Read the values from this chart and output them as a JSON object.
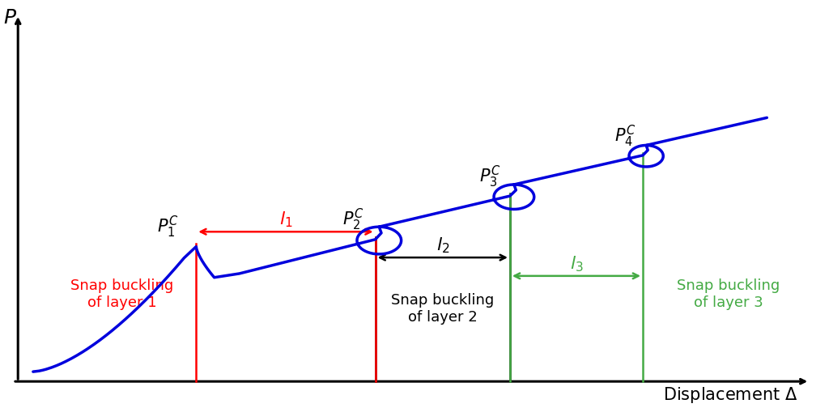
{
  "background_color": "#ffffff",
  "curve_color": "#0000dd",
  "curve_lw": 2.5,
  "axis_color": "black",
  "axis_lw": 2.0,
  "vline_colors": [
    "red",
    "red",
    "black",
    "black",
    "green",
    "green"
  ],
  "vline_lw": 1.5,
  "arrow_color_l1": "red",
  "arrow_color_l2": "black",
  "arrow_color_l3": "#44aa44",
  "snap_label_colors": [
    "red",
    "black",
    "#44aa44"
  ],
  "snap_label_texts": [
    "Snap buckling\nof layer 1",
    "Snap buckling\nof layer 2",
    "Snap buckling\nof layer 3"
  ],
  "peak_label_texts": [
    "$P_1^C$",
    "$P_2^C$",
    "$P_3^C$",
    "$P_4^C$"
  ],
  "l_label_texts": [
    "$l_1$",
    "$l_2$",
    "$l_3$"
  ],
  "xlabel": "Displacement $\\Delta$",
  "ylabel": "P"
}
